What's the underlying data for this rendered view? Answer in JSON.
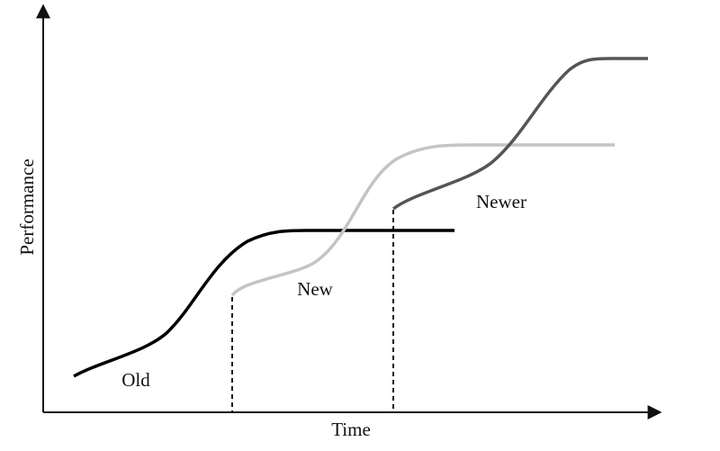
{
  "axes": {
    "y_label": "Performance",
    "x_label": "Time"
  },
  "curves": [
    {
      "label": "Old"
    },
    {
      "label": "New"
    },
    {
      "label": "Newer"
    }
  ]
}
